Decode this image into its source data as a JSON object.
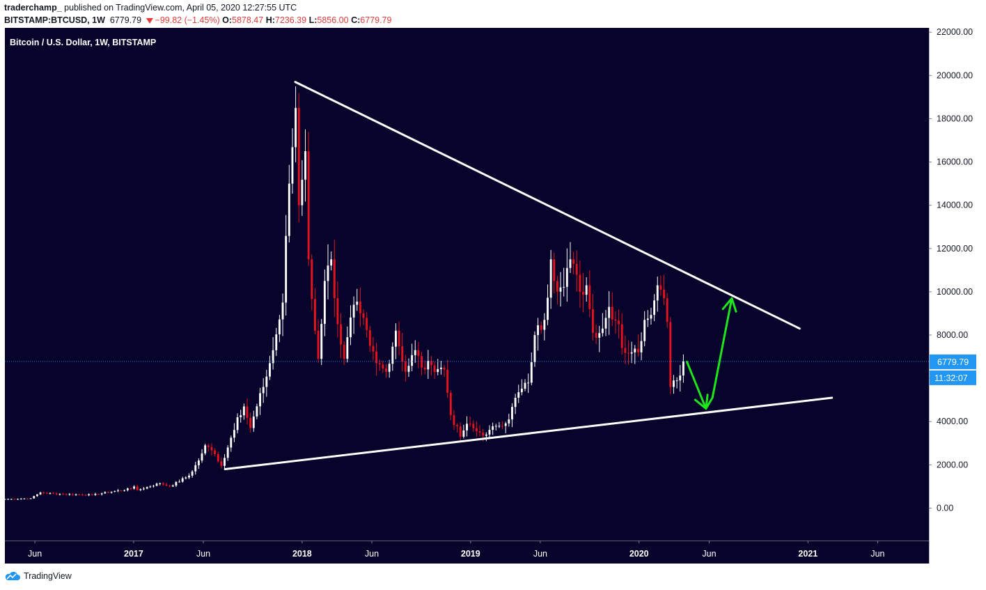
{
  "header": {
    "author": "traderchamp_",
    "published_text": "published on TradingView.com, April 05, 2020 12:27:55 UTC",
    "symbol": "BITSTAMP:BTCUSD, 1W",
    "last": "6779.79",
    "change": "−99.82 (−1.45%)",
    "o_label": "O:",
    "o_value": "5878.47",
    "h_label": "H:",
    "h_value": "7236.39",
    "l_label": "L:",
    "l_value": "5856.00",
    "c_label": "C:",
    "c_value": "6779.79"
  },
  "footer": {
    "brand": "TradingView"
  },
  "colors": {
    "background": "#06042a",
    "up": "#ffffff",
    "down": "#e8111c",
    "trendline": "#ffffff",
    "projection": "#1ee61e",
    "price_badge": "#2196f3"
  },
  "chart_data": {
    "type": "candlestick",
    "title": "Bitcoin / U.S. Dollar, 1W, BITSTAMP",
    "ylim": [
      -1500,
      22200
    ],
    "y_ticks": [
      0,
      2000,
      4000,
      6000,
      8000,
      10000,
      12000,
      14000,
      16000,
      18000,
      20000,
      22000
    ],
    "y_tick_labels": [
      "0.00",
      "2000.00",
      "4000.00",
      "6000.00",
      "8000.00",
      "10000.00",
      "12000.00",
      "14000.00",
      "16000.00",
      "18000.00",
      "20000.00",
      "22000.00"
    ],
    "xlim": [
      "2016-03-28",
      "2021-09-20"
    ],
    "x_ticks": [
      {
        "date": "2016-06-01",
        "label": "Jun"
      },
      {
        "date": "2017-01-01",
        "label": "2017"
      },
      {
        "date": "2017-06-01",
        "label": "Jun"
      },
      {
        "date": "2018-01-01",
        "label": "2018"
      },
      {
        "date": "2018-06-01",
        "label": "Jun"
      },
      {
        "date": "2019-01-01",
        "label": "2019"
      },
      {
        "date": "2019-06-01",
        "label": "Jun"
      },
      {
        "date": "2020-01-01",
        "label": "2020"
      },
      {
        "date": "2020-06-01",
        "label": "Jun"
      },
      {
        "date": "2021-01-01",
        "label": "2021"
      },
      {
        "date": "2021-06-01",
        "label": "Jun"
      }
    ],
    "bold_x_labels": [
      "2017",
      "2018",
      "2019",
      "2020",
      "2021"
    ],
    "current_price": 6779.79,
    "current_price_label": "6779.79",
    "countdown_label": "11:32:07",
    "anchors": [
      [
        "2016-03-28",
        415
      ],
      [
        "2016-05-23",
        450
      ],
      [
        "2016-06-13",
        720
      ],
      [
        "2016-07-25",
        650
      ],
      [
        "2016-10-03",
        610
      ],
      [
        "2016-12-26",
        900
      ],
      [
        "2017-01-02",
        1000
      ],
      [
        "2017-01-09",
        830
      ],
      [
        "2017-02-27",
        1150
      ],
      [
        "2017-03-20",
        1000
      ],
      [
        "2017-05-01",
        1500
      ],
      [
        "2017-05-22",
        2200
      ],
      [
        "2017-06-05",
        2900
      ],
      [
        "2017-06-26",
        2500
      ],
      [
        "2017-07-10",
        1950
      ],
      [
        "2017-07-24",
        2800
      ],
      [
        "2017-08-14",
        4200
      ],
      [
        "2017-08-28",
        4700
      ],
      [
        "2017-09-11",
        3700
      ],
      [
        "2017-10-09",
        5600
      ],
      [
        "2017-10-30",
        7300
      ],
      [
        "2017-11-20",
        9500
      ],
      [
        "2017-12-04",
        15000
      ],
      [
        "2017-12-18",
        18500
      ],
      [
        "2017-12-25",
        14000
      ],
      [
        "2018-01-08",
        16500
      ],
      [
        "2018-01-15",
        11500
      ],
      [
        "2018-01-29",
        8200
      ],
      [
        "2018-02-05",
        6900
      ],
      [
        "2018-02-19",
        10500
      ],
      [
        "2018-03-05",
        11500
      ],
      [
        "2018-03-19",
        8500
      ],
      [
        "2018-04-02",
        6900
      ],
      [
        "2018-04-23",
        9400
      ],
      [
        "2018-05-07",
        9000
      ],
      [
        "2018-05-28",
        7500
      ],
      [
        "2018-06-11",
        6700
      ],
      [
        "2018-07-02",
        6300
      ],
      [
        "2018-07-23",
        8200
      ],
      [
        "2018-08-13",
        6300
      ],
      [
        "2018-09-03",
        7300
      ],
      [
        "2018-09-17",
        6500
      ],
      [
        "2018-10-08",
        6600
      ],
      [
        "2018-11-05",
        6400
      ],
      [
        "2018-11-19",
        4300
      ],
      [
        "2018-12-10",
        3300
      ],
      [
        "2018-12-24",
        3900
      ],
      [
        "2019-01-14",
        3550
      ],
      [
        "2019-02-04",
        3400
      ],
      [
        "2019-02-25",
        3800
      ],
      [
        "2019-03-25",
        4100
      ],
      [
        "2019-04-08",
        5100
      ],
      [
        "2019-05-06",
        5800
      ],
      [
        "2019-05-20",
        8000
      ],
      [
        "2019-06-10",
        8700
      ],
      [
        "2019-06-24",
        11500
      ],
      [
        "2019-07-01",
        10500
      ],
      [
        "2019-07-15",
        10200
      ],
      [
        "2019-08-05",
        11500
      ],
      [
        "2019-08-26",
        10000
      ],
      [
        "2019-09-09",
        10300
      ],
      [
        "2019-09-23",
        8100
      ],
      [
        "2019-10-14",
        8300
      ],
      [
        "2019-10-28",
        9300
      ],
      [
        "2019-11-18",
        8500
      ],
      [
        "2019-11-25",
        7400
      ],
      [
        "2019-12-16",
        7200
      ],
      [
        "2019-12-30",
        7200
      ],
      [
        "2020-01-13",
        8700
      ],
      [
        "2020-02-03",
        9600
      ],
      [
        "2020-02-10",
        10300
      ],
      [
        "2020-02-24",
        9700
      ],
      [
        "2020-03-02",
        8600
      ],
      [
        "2020-03-09",
        5600
      ],
      [
        "2020-03-16",
        5900
      ],
      [
        "2020-03-23",
        5900
      ],
      [
        "2020-04-06",
        6779.79
      ]
    ],
    "annotations": {
      "resistance_line": [
        [
          "2017-12-17",
          19700
        ],
        [
          "2020-12-14",
          8300
        ]
      ],
      "support_line": [
        [
          "2017-07-18",
          1800
        ],
        [
          "2021-02-22",
          5100
        ]
      ],
      "projection_path": [
        [
          "2020-04-13",
          6800
        ],
        [
          "2020-05-25",
          4600
        ],
        [
          "2020-06-08",
          5100
        ],
        [
          "2020-07-20",
          9700
        ]
      ]
    }
  }
}
